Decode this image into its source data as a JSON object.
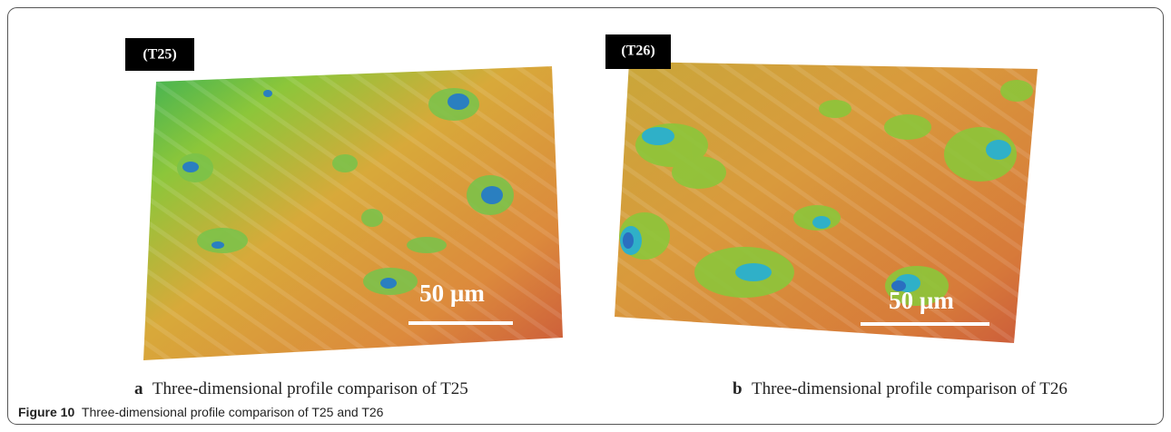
{
  "figure": {
    "panels": [
      {
        "tag": "(T25)",
        "scale_bar": "50 µm",
        "letter": "a",
        "subcaption": "Three-dimensional profile comparison of T25"
      },
      {
        "tag": "(T26)",
        "scale_bar": "50 µm",
        "letter": "b",
        "subcaption": "Three-dimensional profile comparison of T26"
      }
    ],
    "label": "Figure 10",
    "caption": "Three-dimensional profile comparison of T25 and T26"
  }
}
